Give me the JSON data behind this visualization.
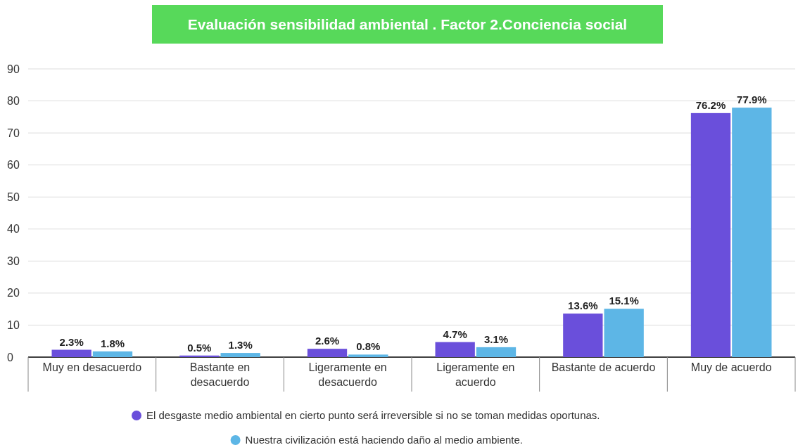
{
  "chart_data": {
    "type": "bar",
    "title": "Evaluación sensibilidad ambiental . Factor 2.Conciencia social",
    "categories": [
      "Muy en desacuerdo",
      "Bastante en desacuerdo",
      "Ligeramente en desacuerdo",
      "Ligeramente en acuerdo",
      "Bastante de acuerdo",
      "Muy de acuerdo"
    ],
    "series": [
      {
        "name": "El desgaste medio ambiental en cierto punto será irreversible si no se toman medidas oportunas.",
        "color": "#6a4fdb",
        "values": [
          2.3,
          0.5,
          2.6,
          4.7,
          13.6,
          76.2
        ],
        "value_labels": [
          "2.3%",
          "0.5%",
          "2.6%",
          "4.7%",
          "13.6%",
          "76.2%"
        ]
      },
      {
        "name": "Nuestra civilización está haciendo daño al medio ambiente.",
        "color": "#5db6e6",
        "values": [
          1.8,
          1.3,
          0.8,
          3.1,
          15.1,
          77.9
        ],
        "value_labels": [
          "1.8%",
          "1.3%",
          "0.8%",
          "3.1%",
          "15.1%",
          "77.9%"
        ]
      }
    ],
    "ylim": [
      0,
      90
    ],
    "yticks": [
      0,
      10,
      20,
      30,
      40,
      50,
      60,
      70,
      80,
      90
    ],
    "grid": "y",
    "legend": "bottom"
  }
}
